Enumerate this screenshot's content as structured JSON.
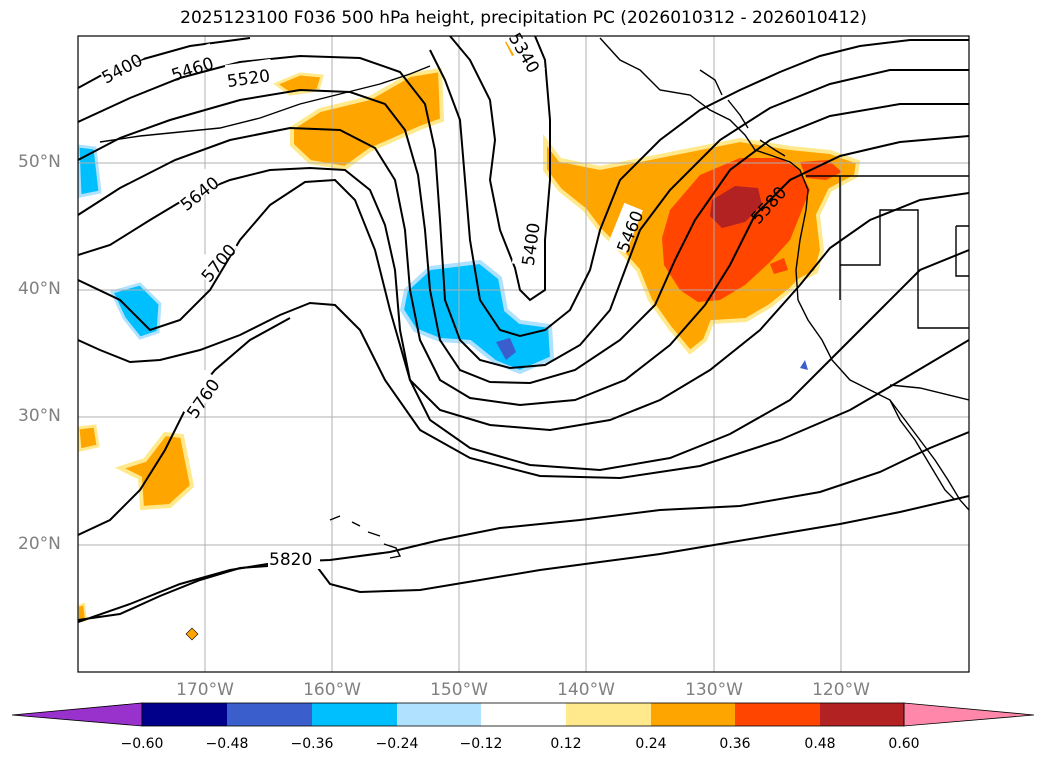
{
  "title": "2025123100 F036 500 hPa height, precipitation PC (2026010312 - 2026010412)",
  "lat_labels": [
    "50°N",
    "40°N",
    "30°N",
    "20°N"
  ],
  "lon_labels": [
    "170°W",
    "160°W",
    "150°W",
    "140°W",
    "130°W",
    "120°W"
  ],
  "contour_labels": [
    "5400",
    "5460",
    "5520",
    "5340",
    "5640",
    "5700",
    "5400",
    "5460",
    "5580",
    "5760",
    "5820"
  ],
  "colorbar": {
    "ticks": [
      "−0.60",
      "−0.48",
      "−0.36",
      "−0.24",
      "−0.12",
      "0.12",
      "0.24",
      "0.36",
      "0.48",
      "0.60"
    ],
    "colors": [
      "#9932cc",
      "#00008b",
      "#3a5fcd",
      "#00bfff",
      "#b0e2ff",
      "#ffffff",
      "#ffe98c",
      "#ffa500",
      "#ff4500",
      "#b22222",
      "#ff88aa"
    ]
  },
  "precip_colors": {
    "light_positive": "#ffe98c",
    "positive": "#ffa500",
    "strong_positive": "#ff4500",
    "very_strong_positive": "#b22222",
    "negative": "#00bfff",
    "strong_negative": "#3a5fcd"
  }
}
